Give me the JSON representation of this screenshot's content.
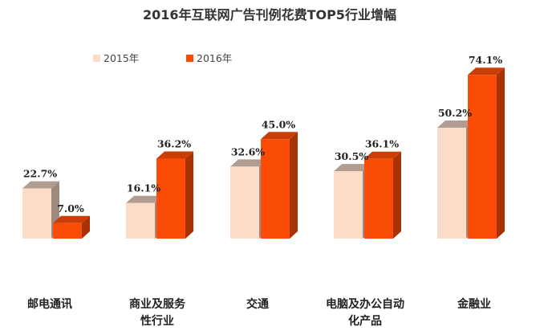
{
  "chart_data": {
    "type": "bar",
    "title": "2016年互联网广告刊例花费TOP5行业增幅",
    "categories": [
      [
        "邮电通讯"
      ],
      [
        "商业及服务",
        "性行业"
      ],
      [
        "交通"
      ],
      [
        "电脑及办公自动",
        "化产品"
      ],
      [
        "金融业"
      ]
    ],
    "series": [
      {
        "name": "2015年",
        "values": [
          22.7,
          16.1,
          32.6,
          30.5,
          50.2
        ],
        "labels": [
          "22.7%",
          "16.1%",
          "32.6%",
          "30.5%",
          "50.2%"
        ],
        "color": "#FBDCC8",
        "side_color": "#9E8A7D",
        "top_color": "#B09C90"
      },
      {
        "name": "2016年",
        "values": [
          7.0,
          36.2,
          45.0,
          36.1,
          74.1
        ],
        "labels": [
          "7.0%",
          "36.2%",
          "45.0%",
          "36.1%",
          "74.1%"
        ],
        "color": "#FA4C06",
        "side_color": "#A63205",
        "top_color": "#C93E07"
      }
    ],
    "ylim": [
      0,
      80
    ],
    "grid": false,
    "legend_position": "top-left",
    "xlabel": "",
    "ylabel": ""
  }
}
